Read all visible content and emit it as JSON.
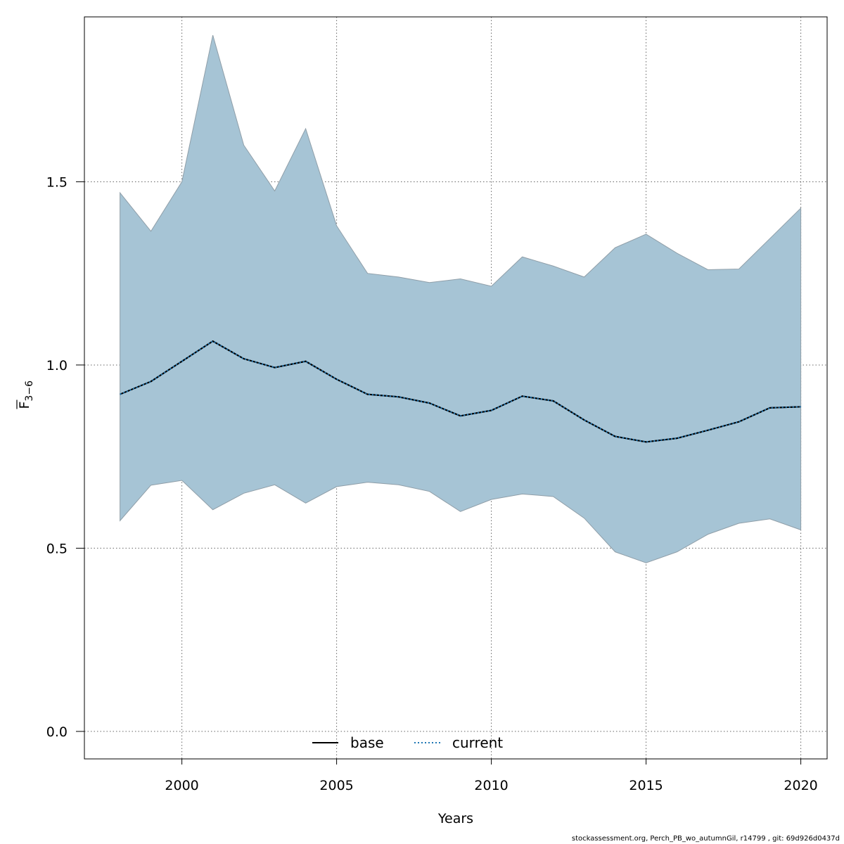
{
  "chart_data": {
    "type": "line",
    "x": [
      1998,
      1999,
      2000,
      2001,
      2002,
      2003,
      2004,
      2005,
      2006,
      2007,
      2008,
      2009,
      2010,
      2011,
      2012,
      2013,
      2014,
      2015,
      2016,
      2017,
      2018,
      2019,
      2020
    ],
    "series": [
      {
        "name": "base",
        "line": "solid",
        "color": "#000000",
        "values": [
          0.92,
          0.955,
          1.01,
          1.065,
          1.017,
          0.993,
          1.01,
          0.961,
          0.92,
          0.913,
          0.896,
          0.861,
          0.876,
          0.915,
          0.902,
          0.85,
          0.805,
          0.79,
          0.8,
          0.822,
          0.845,
          0.883,
          0.886
        ]
      },
      {
        "name": "current",
        "line": "dotted",
        "color": "#1f77b4",
        "values": [
          0.92,
          0.955,
          1.01,
          1.065,
          1.017,
          0.993,
          1.01,
          0.961,
          0.92,
          0.913,
          0.896,
          0.861,
          0.876,
          0.915,
          0.902,
          0.85,
          0.805,
          0.79,
          0.8,
          0.822,
          0.845,
          0.883,
          0.886
        ]
      }
    ],
    "confidence_band": {
      "color": "#a6c4d5",
      "upper": [
        1.47,
        1.365,
        1.5,
        1.9,
        1.6,
        1.475,
        1.645,
        1.38,
        1.25,
        1.24,
        1.225,
        1.235,
        1.215,
        1.295,
        1.27,
        1.24,
        1.32,
        1.357,
        1.305,
        1.26,
        1.262,
        1.345,
        1.428
      ],
      "lower": [
        0.575,
        0.672,
        0.685,
        0.605,
        0.65,
        0.673,
        0.623,
        0.668,
        0.68,
        0.673,
        0.655,
        0.6,
        0.633,
        0.648,
        0.641,
        0.582,
        0.49,
        0.46,
        0.49,
        0.538,
        0.568,
        0.58,
        0.55
      ]
    },
    "xlabel": "Years",
    "ylabel_main": "F",
    "ylabel_sub": "3−6",
    "xticks": [
      2000,
      2005,
      2010,
      2015,
      2020
    ],
    "xtick_labels": [
      "2000",
      "2005",
      "2010",
      "2015",
      "2020"
    ],
    "yticks": [
      0.0,
      0.5,
      1.0,
      1.5
    ],
    "ytick_labels": [
      "0.0",
      "0.5",
      "1.0",
      "1.5"
    ],
    "xlim": [
      1996.85,
      2020.85
    ],
    "ylim": [
      -0.075,
      1.95
    ],
    "grid": true,
    "legend_position": "bottom-center",
    "legend": [
      "base",
      "current"
    ]
  },
  "footer_text": "stockassessment.org, Perch_PB_wo_autumnGil, r14799 , git: 69d926d0437d"
}
